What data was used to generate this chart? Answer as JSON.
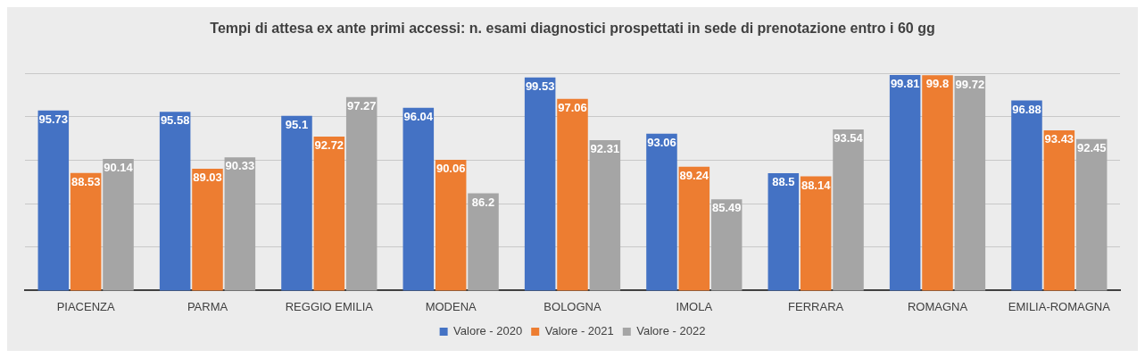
{
  "chart_data": {
    "type": "bar",
    "title": "Tempi di attesa ex ante primi accessi: n. esami diagnostici prospettati in sede di prenotazione entro i 60 gg",
    "categories": [
      "PIACENZA",
      "PARMA",
      "REGGIO EMILIA",
      "MODENA",
      "BOLOGNA",
      "IMOLA",
      "FERRARA",
      "ROMAGNA",
      "EMILIA-ROMAGNA"
    ],
    "series": [
      {
        "name": "Valore - 2020",
        "color": "#4472c4",
        "values": [
          95.73,
          95.58,
          95.1,
          96.04,
          99.53,
          93.06,
          88.5,
          99.81,
          96.88
        ]
      },
      {
        "name": "Valore - 2021",
        "color": "#ed7d31",
        "values": [
          88.53,
          89.03,
          92.72,
          90.06,
          97.06,
          89.24,
          88.14,
          99.8,
          93.43
        ]
      },
      {
        "name": "Valore - 2022",
        "color": "#a5a5a5",
        "values": [
          90.14,
          90.33,
          97.27,
          86.2,
          92.31,
          85.49,
          93.54,
          99.72,
          92.45
        ]
      }
    ],
    "ylim": [
      75,
      100
    ],
    "yticks": [
      75,
      80,
      85,
      90,
      95,
      100
    ],
    "tick_labels": "x",
    "grid": "y",
    "legend": "bottom",
    "data_labels": true
  }
}
